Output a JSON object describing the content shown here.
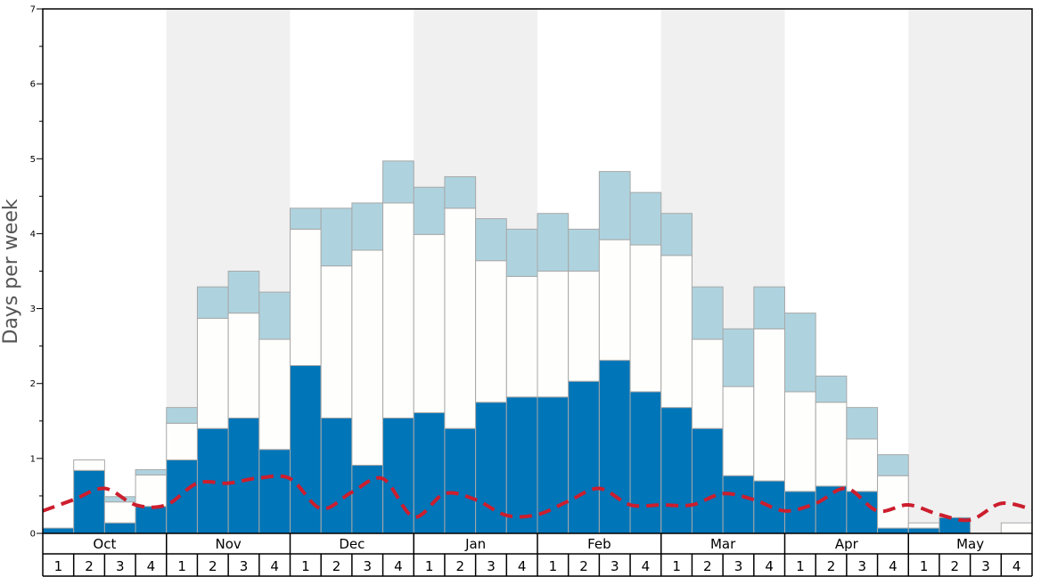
{
  "chart_data": {
    "type": "bar",
    "ylabel": "Days per week",
    "ylim": [
      0,
      7
    ],
    "yticks": [
      "0",
      "1",
      "2",
      "3",
      "4",
      "5",
      "6",
      "7"
    ],
    "months": [
      "Oct",
      "Nov",
      "Dec",
      "Jan",
      "Feb",
      "Mar",
      "Apr",
      "May"
    ],
    "weeks": [
      "1",
      "2",
      "3",
      "4"
    ],
    "stacked": true,
    "series": [
      {
        "color": "#0075b8",
        "values": [
          0.07,
          0.84,
          0.14,
          0.36,
          0.98,
          1.4,
          1.54,
          1.12,
          2.24,
          1.54,
          0.91,
          1.54,
          1.61,
          1.4,
          1.75,
          1.82,
          1.82,
          2.03,
          2.31,
          1.89,
          1.68,
          1.4,
          0.77,
          0.7,
          0.56,
          0.63,
          0.56,
          0.07,
          0.07,
          0.21,
          0.0,
          0.0
        ]
      },
      {
        "color": "#fefefc",
        "values": [
          0.0,
          0.14,
          0.28,
          0.42,
          0.49,
          1.47,
          1.4,
          1.47,
          1.82,
          2.03,
          2.87,
          2.87,
          2.38,
          2.94,
          1.89,
          1.61,
          1.68,
          1.47,
          1.61,
          1.96,
          2.03,
          1.19,
          1.19,
          2.03,
          1.33,
          1.12,
          0.7,
          0.7,
          0.07,
          0.0,
          0.0,
          0.14
        ]
      },
      {
        "color": "#aed3df",
        "values": [
          0.0,
          0.0,
          0.07,
          0.07,
          0.21,
          0.42,
          0.56,
          0.63,
          0.28,
          0.77,
          0.63,
          0.56,
          0.63,
          0.42,
          0.56,
          0.63,
          0.77,
          0.56,
          0.91,
          0.7,
          0.56,
          0.7,
          0.77,
          0.56,
          1.05,
          0.35,
          0.42,
          0.28,
          0.0,
          0.0,
          0.0,
          0.0
        ]
      }
    ],
    "line": {
      "color": "#cc1e2e",
      "style": "dashed",
      "values": [
        0.3,
        0.45,
        0.6,
        0.38,
        0.38,
        0.67,
        0.67,
        0.74,
        0.73,
        0.33,
        0.55,
        0.73,
        0.22,
        0.53,
        0.45,
        0.24,
        0.25,
        0.43,
        0.6,
        0.38,
        0.38,
        0.38,
        0.53,
        0.45,
        0.3,
        0.4,
        0.6,
        0.3,
        0.38,
        0.25,
        0.18,
        0.4,
        0.32
      ]
    },
    "shaded_months": [
      "Nov",
      "Jan",
      "Mar",
      "May"
    ],
    "grid": false,
    "legend": "none"
  }
}
